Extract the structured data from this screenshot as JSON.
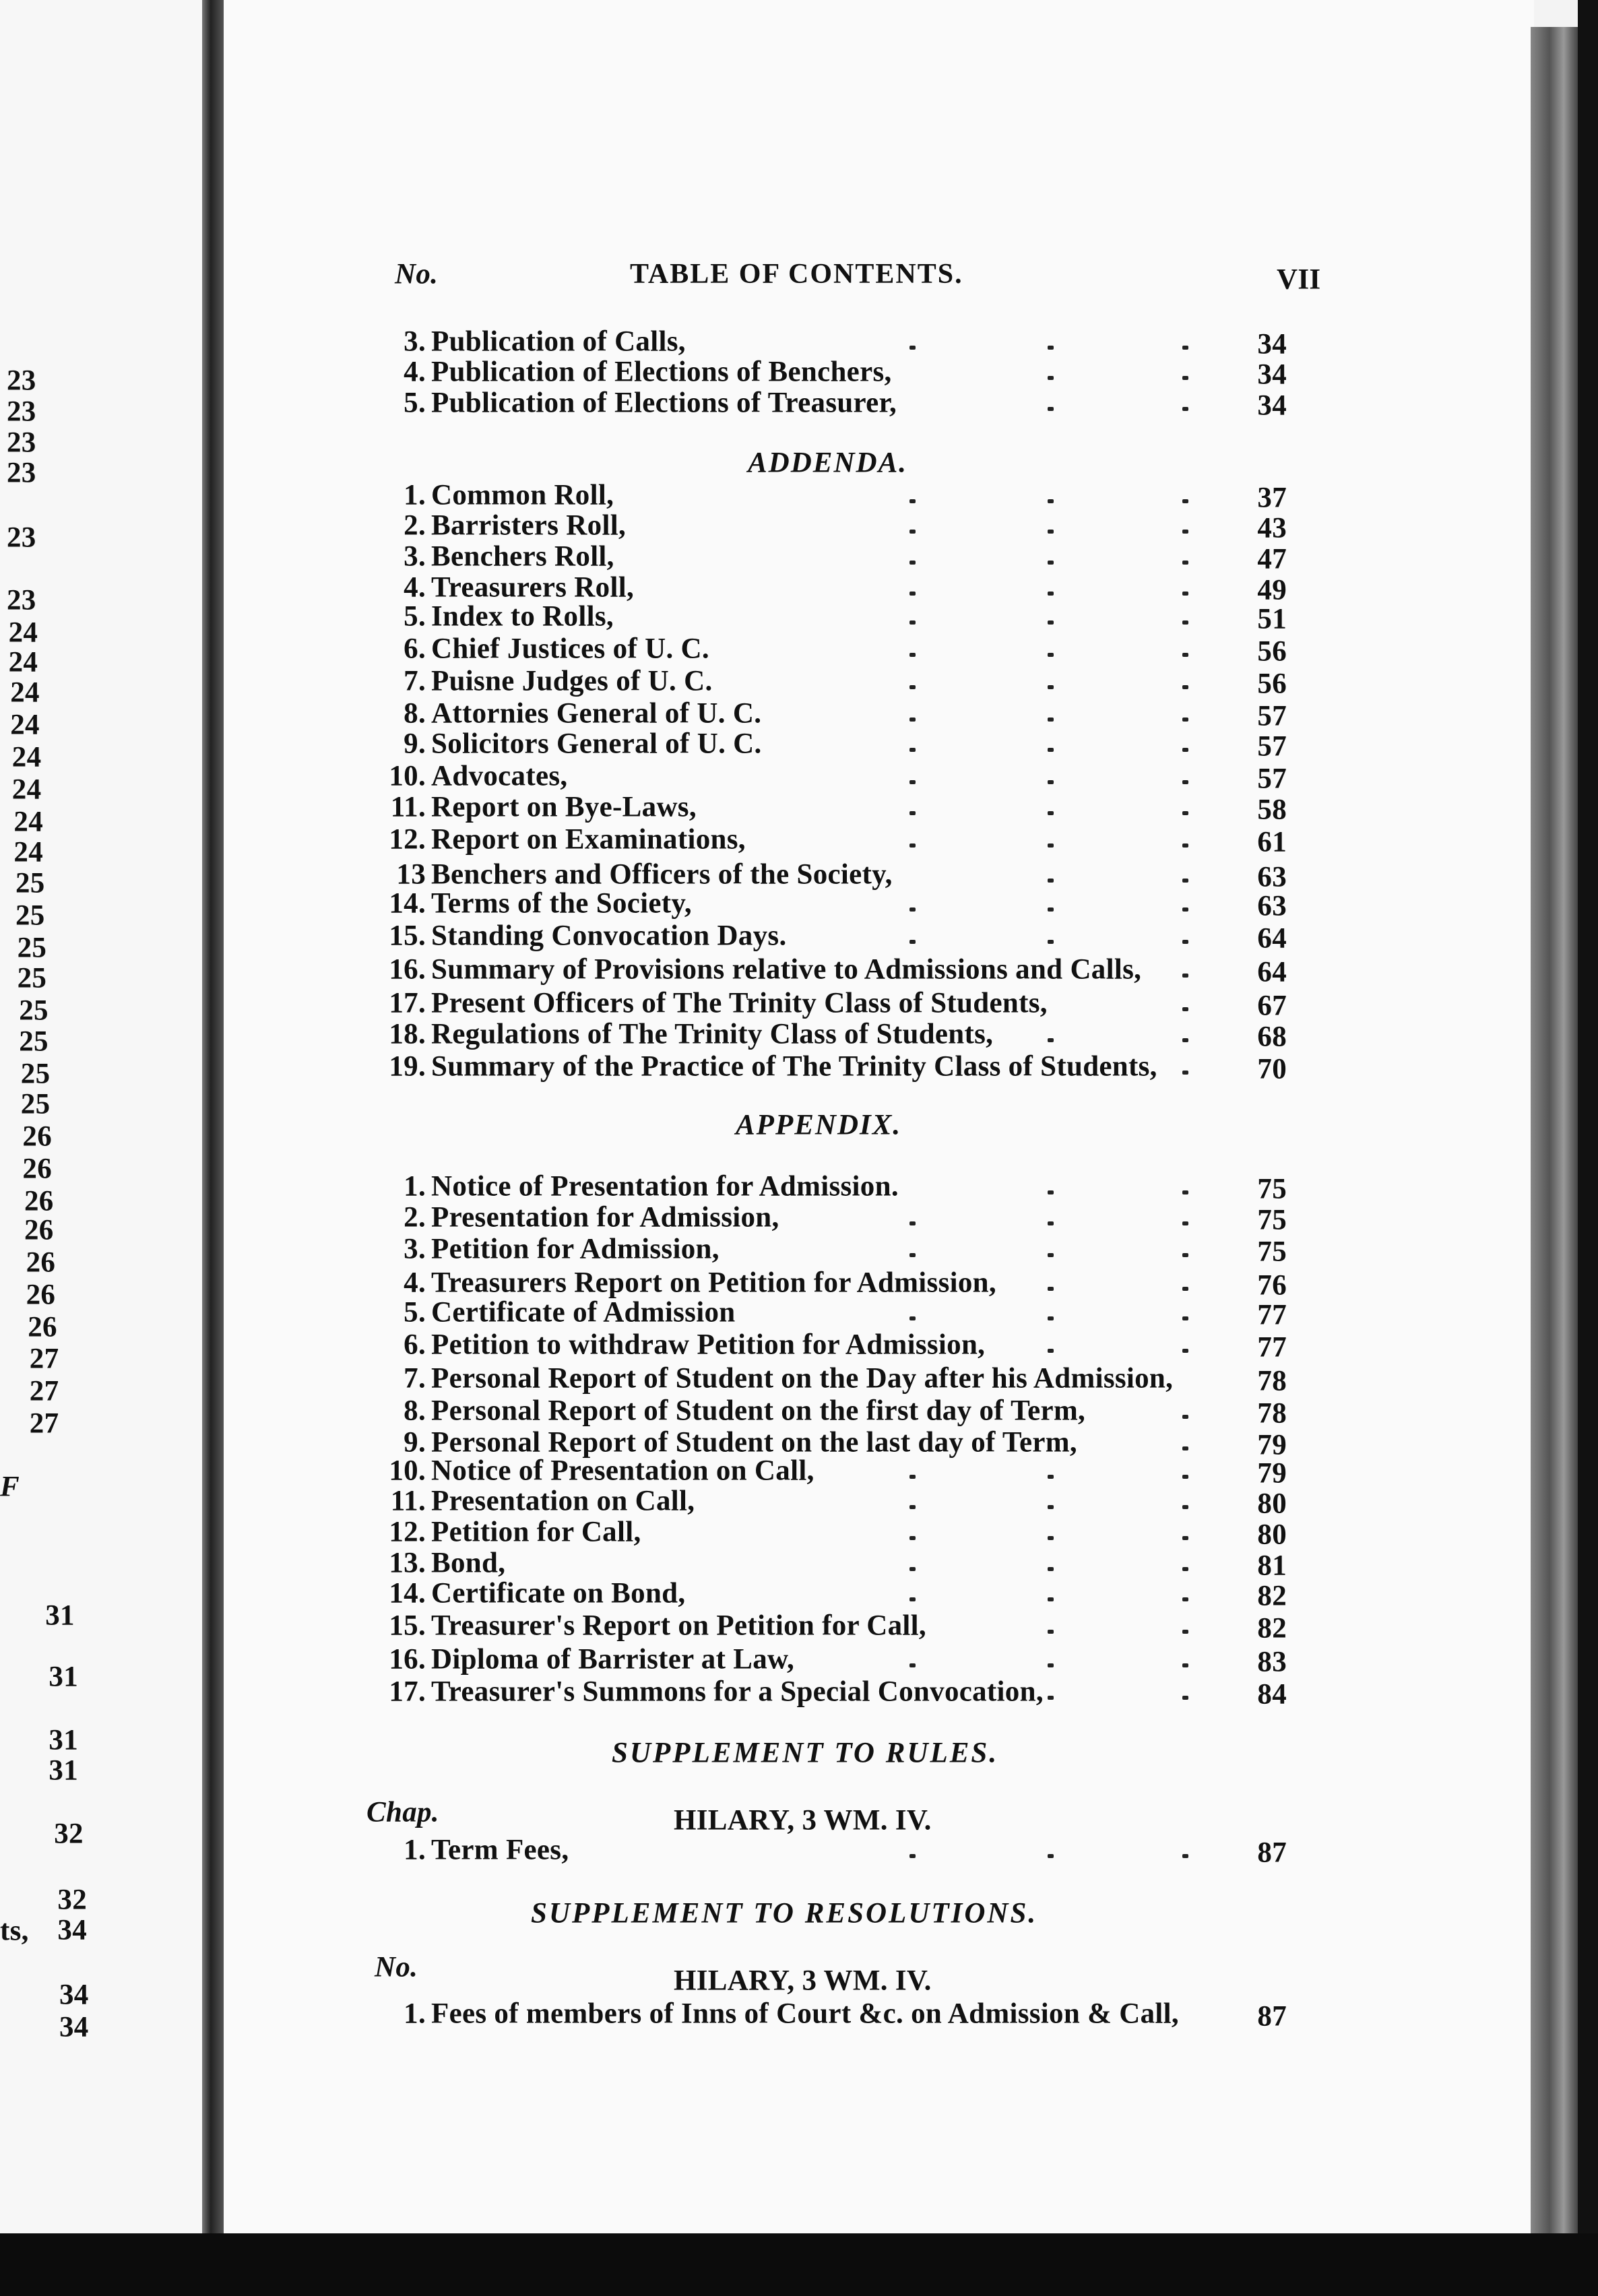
{
  "header": {
    "no_label": "No.",
    "title": "TABLE OF CONTENTS.",
    "page_number": "VII"
  },
  "top_entries": [
    {
      "n": "3.",
      "text": "Publication of Calls,",
      "page": "34"
    },
    {
      "n": "4.",
      "text": "Publication of Elections of Benchers,",
      "page": "34"
    },
    {
      "n": "5.",
      "text": "Publication of Elections of Treasurer,",
      "page": "34"
    }
  ],
  "addenda": {
    "heading": "ADDENDA.",
    "entries": [
      {
        "n": "1.",
        "text": "Common Roll,",
        "page": "37"
      },
      {
        "n": "2.",
        "text": "Barristers Roll,",
        "page": "43"
      },
      {
        "n": "3.",
        "text": "Benchers Roll,",
        "page": "47"
      },
      {
        "n": "4.",
        "text": "Treasurers Roll,",
        "page": "49"
      },
      {
        "n": "5.",
        "text": "Index to Rolls,",
        "page": "51"
      },
      {
        "n": "6.",
        "text": "Chief Justices of U. C.",
        "page": "56"
      },
      {
        "n": "7.",
        "text": "Puisne Judges of U. C.",
        "page": "56"
      },
      {
        "n": "8.",
        "text": "Attornies General of U. C.",
        "page": "57"
      },
      {
        "n": "9.",
        "text": "Solicitors General of U. C.",
        "page": "57"
      },
      {
        "n": "10.",
        "text": "Advocates,",
        "page": "57"
      },
      {
        "n": "11.",
        "text": "Report on Bye-Laws,",
        "page": "58"
      },
      {
        "n": "12.",
        "text": "Report on Examinations,",
        "page": "61"
      },
      {
        "n": "13",
        "text": "Benchers and Officers of the Society,",
        "page": "63"
      },
      {
        "n": "14.",
        "text": "Terms of the Society,",
        "page": "63"
      },
      {
        "n": "15.",
        "text": "Standing Convocation Days.",
        "page": "64"
      },
      {
        "n": "16.",
        "text": "Summary of Provisions relative to Admissions and Calls,",
        "page": "64"
      },
      {
        "n": "17.",
        "text": "Present Officers of The Trinity Class of Students,",
        "page": "67"
      },
      {
        "n": "18.",
        "text": "Regulations of The Trinity Class of Students,",
        "page": "68"
      },
      {
        "n": "19.",
        "text": "Summary of the Practice of The Trinity Class of Students,",
        "page": "70"
      }
    ]
  },
  "appendix": {
    "heading": "APPENDIX.",
    "entries": [
      {
        "n": "1.",
        "text": "Notice of Presentation for Admission.",
        "page": "75"
      },
      {
        "n": "2.",
        "text": "Presentation for Admission,",
        "page": "75"
      },
      {
        "n": "3.",
        "text": "Petition for Admission,",
        "page": "75"
      },
      {
        "n": "4.",
        "text": "Treasurers Report on Petition for Admission,",
        "page": "76"
      },
      {
        "n": "5.",
        "text": "Certificate of Admission",
        "page": "77"
      },
      {
        "n": "6.",
        "text": "Petition to withdraw Petition for Admission,",
        "page": "77"
      },
      {
        "n": "7.",
        "text": "Personal Report of Student on the Day after his Admission,",
        "page": "78"
      },
      {
        "n": "8.",
        "text": "Personal Report of Student on the first day of Term,",
        "page": "78"
      },
      {
        "n": "9.",
        "text": "Personal Report of Student on the last day of Term,",
        "page": "79"
      },
      {
        "n": "10.",
        "text": "Notice of Presentation on Call,",
        "page": "79"
      },
      {
        "n": "11.",
        "text": "Presentation on Call,",
        "page": "80"
      },
      {
        "n": "12.",
        "text": "Petition for Call,",
        "page": "80"
      },
      {
        "n": "13.",
        "text": "Bond,",
        "page": "81"
      },
      {
        "n": "14.",
        "text": "Certificate on Bond,",
        "page": "82"
      },
      {
        "n": "15.",
        "text": "Treasurer's Report on Petition for Call,",
        "page": "82"
      },
      {
        "n": "16.",
        "text": "Diploma of Barrister at Law,",
        "page": "83"
      },
      {
        "n": "17.",
        "text": "Treasurer's Summons for a Special Convocation,",
        "page": "84"
      }
    ]
  },
  "supplement_rules": {
    "heading": "SUPPLEMENT TO RULES.",
    "col_label": "Chap.",
    "subheading": "HILARY, 3 WM. IV.",
    "entries": [
      {
        "n": "1.",
        "text": "Term Fees,",
        "page": "87"
      }
    ]
  },
  "supplement_resolutions": {
    "heading": "SUPPLEMENT TO RESOLUTIONS.",
    "col_label": "No.",
    "subheading": "HILARY, 3 WM. IV.",
    "entries": [
      {
        "n": "1.",
        "text": "Fees of members of Inns of Court &c. on Admission & Call,",
        "page": "87"
      }
    ]
  },
  "left_page": {
    "page_numbers": [
      "23",
      "23",
      "23",
      "23",
      "23",
      "23",
      "24",
      "24",
      "24",
      "24",
      "24",
      "24",
      "24",
      "24",
      "25",
      "25",
      "25",
      "25",
      "25",
      "25",
      "25",
      "25",
      "26",
      "26",
      "26",
      "26",
      "26",
      "26",
      "26",
      "27",
      "27",
      "27",
      "31",
      "31",
      "31",
      "31",
      "32",
      "32",
      "34",
      "34",
      "34"
    ],
    "fragments": {
      "heading_fragment": "F",
      "text_fragment": "ts,"
    }
  }
}
